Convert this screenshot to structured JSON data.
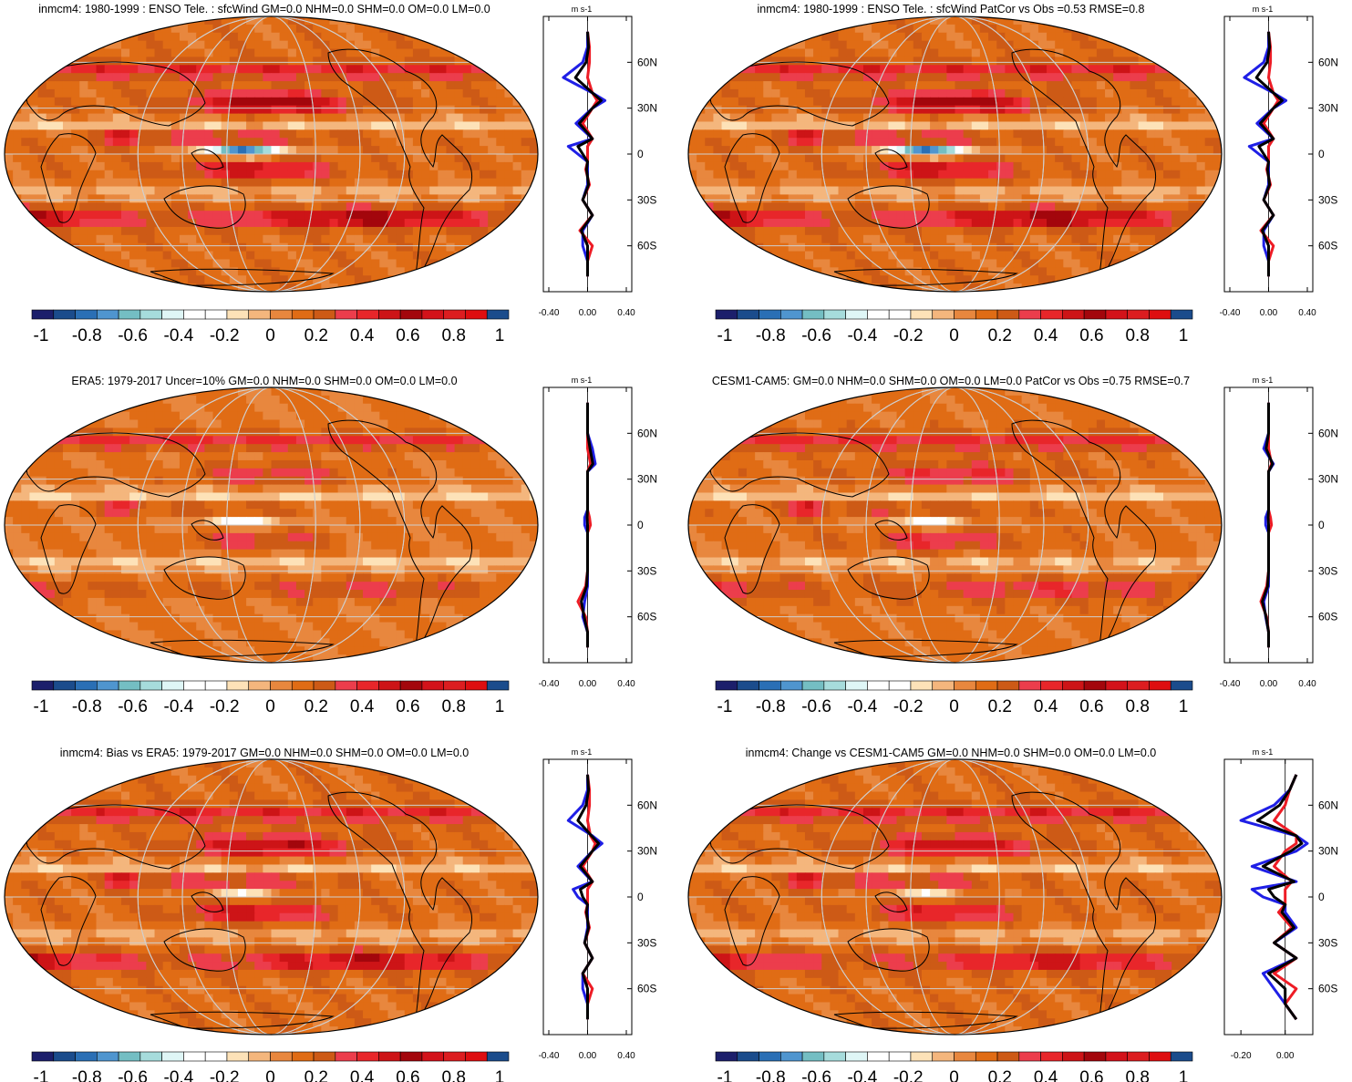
{
  "colorbar": {
    "colors": [
      "#1c1f6b",
      "#1b4c8c",
      "#2a6fb5",
      "#4f95cf",
      "#74bec3",
      "#a6dcdc",
      "#dff6f6",
      "#ffffff",
      "#ffffff",
      "#fde2b8",
      "#f4b67d",
      "#e8873e",
      "#e06c15",
      "#cd5a16",
      "#ec3d4c",
      "#e8262a",
      "#cd1417",
      "#a3060c",
      "#d3121a",
      "#dc1d20",
      "#de0e10",
      "#1b4c8c"
    ],
    "labels": [
      "-1",
      "-0.8",
      "-0.6",
      "-0.4",
      "-0.2",
      "0",
      "0.2",
      "0.4",
      "0.6",
      "0.8",
      "1"
    ]
  },
  "profile_colors": {
    "model": "#1f1fe6",
    "obs": "#ee1c25",
    "mean": "#000000"
  },
  "panels": [
    {
      "title": "inmcm4: 1980-1999 : ENSO Tele. : sfcWind GM=0.0 NHM=0.0 SHM=0.0 OM=0.0 LM=0.0",
      "unit": "m s-1",
      "lat_labels": [
        "60N",
        "30N",
        "0",
        "30S",
        "60S"
      ],
      "x_labels": [
        "-0.40",
        "0.00",
        "0.40"
      ]
    },
    {
      "title": "inmcm4: 1980-1999 : ENSO Tele. : sfcWind PatCor vs Obs =0.53 RMSE=0.8",
      "unit": "m s-1",
      "lat_labels": [
        "60N",
        "30N",
        "0",
        "30S",
        "60S"
      ],
      "x_labels": [
        "-0.40",
        "0.00",
        "0.40"
      ]
    },
    {
      "title": "ERA5: 1979-2017 Uncer=10% GM=0.0 NHM=0.0 SHM=0.0 OM=0.0 LM=0.0",
      "unit": "m s-1",
      "lat_labels": [
        "60N",
        "30N",
        "0",
        "30S",
        "60S"
      ],
      "x_labels": [
        "-0.40",
        "0.00",
        "0.40"
      ]
    },
    {
      "title": "CESM1-CAM5: GM=0.0 NHM=0.0 SHM=0.0 OM=0.0 LM=0.0 PatCor vs Obs =0.75 RMSE=0.7",
      "unit": "m s-1",
      "lat_labels": [
        "60N",
        "30N",
        "0",
        "30S",
        "60S"
      ],
      "x_labels": [
        "-0.40",
        "0.00",
        "0.40"
      ]
    },
    {
      "title": "inmcm4: Bias vs ERA5: 1979-2017 GM=0.0 NHM=0.0 SHM=0.0 OM=0.0 LM=0.0",
      "unit": "m s-1",
      "lat_labels": [
        "60N",
        "30N",
        "0",
        "30S",
        "60S"
      ],
      "x_labels": [
        "-0.40",
        "0.00",
        "0.40"
      ]
    },
    {
      "title": "inmcm4: Change vs CESM1-CAM5 GM=0.0 NHM=0.0 SHM=0.0 OM=0.0 LM=0.0",
      "unit": "m s-1",
      "lat_labels": [
        "60N",
        "30N",
        "0",
        "30S",
        "60S"
      ],
      "x_labels": [
        "-0.20",
        "0.00"
      ]
    }
  ],
  "chart_data": [
    {
      "type": "heatmap",
      "title": "inmcm4: 1980-1999 : ENSO Tele. : sfcWind GM=0.0 NHM=0.0 SHM=0.0 OM=0.0 LM=0.0",
      "colorbar": {
        "min": -1,
        "max": 1,
        "ticks": [
          "-1",
          "-0.8",
          "-0.6",
          "-0.4",
          "-0.2",
          "0",
          "0.2",
          "0.4",
          "0.6",
          "0.8",
          "1"
        ]
      },
      "zonal_profile": {
        "unit": "m s-1",
        "xlim": [
          -0.4,
          0.4
        ],
        "lat": [
          80,
          70,
          60,
          50,
          40,
          35,
          30,
          20,
          10,
          5,
          0,
          -5,
          -10,
          -20,
          -30,
          -40,
          -50,
          -60,
          -70,
          -80
        ],
        "model": [
          0.0,
          0.0,
          -0.05,
          -0.25,
          0.05,
          0.18,
          0.05,
          -0.12,
          0.05,
          -0.2,
          -0.1,
          0.0,
          0.0,
          0.0,
          -0.05,
          0.05,
          -0.05,
          -0.05,
          0.0,
          0.0
        ],
        "obs": [
          0.0,
          0.02,
          0.02,
          0.0,
          0.05,
          0.1,
          0.05,
          -0.05,
          0.05,
          0.0,
          0.0,
          0.0,
          -0.02,
          0.02,
          -0.05,
          0.05,
          -0.08,
          0.05,
          0.0,
          0.0
        ]
      }
    },
    {
      "type": "heatmap",
      "title": "inmcm4: 1980-1999 : ENSO Tele. : sfcWind PatCor vs Obs =0.53 RMSE=0.8",
      "colorbar": {
        "min": -1,
        "max": 1,
        "ticks": [
          "-1",
          "-0.8",
          "-0.6",
          "-0.4",
          "-0.2",
          "0",
          "0.2",
          "0.4",
          "0.6",
          "0.8",
          "1"
        ]
      },
      "zonal_profile": {
        "unit": "m s-1",
        "xlim": [
          -0.4,
          0.4
        ],
        "lat": [
          80,
          70,
          60,
          50,
          40,
          35,
          30,
          20,
          10,
          5,
          0,
          -5,
          -10,
          -20,
          -30,
          -40,
          -50,
          -60,
          -70,
          -80
        ],
        "model": [
          0.0,
          0.0,
          -0.05,
          -0.25,
          0.05,
          0.18,
          0.05,
          -0.12,
          0.05,
          -0.2,
          -0.1,
          0.0,
          0.0,
          0.0,
          -0.05,
          0.05,
          -0.05,
          -0.05,
          0.0,
          0.0
        ],
        "obs": [
          0.0,
          0.02,
          0.02,
          0.0,
          0.05,
          0.1,
          0.05,
          -0.05,
          0.05,
          0.0,
          0.0,
          0.0,
          -0.02,
          0.02,
          -0.05,
          0.05,
          -0.08,
          0.05,
          0.0,
          0.0
        ]
      }
    },
    {
      "type": "heatmap",
      "title": "ERA5: 1979-2017 Uncer=10% GM=0.0 NHM=0.0 SHM=0.0 OM=0.0 LM=0.0",
      "colorbar": {
        "min": -1,
        "max": 1,
        "ticks": [
          "-1",
          "-0.8",
          "-0.6",
          "-0.4",
          "-0.2",
          "0",
          "0.2",
          "0.4",
          "0.6",
          "0.8",
          "1"
        ]
      },
      "zonal_profile": {
        "unit": "m s-1",
        "xlim": [
          -0.4,
          0.4
        ],
        "lat": [
          80,
          70,
          60,
          50,
          40,
          35,
          30,
          20,
          10,
          5,
          0,
          -5,
          -10,
          -20,
          -30,
          -40,
          -50,
          -60,
          -70,
          -80
        ],
        "model": [
          0.0,
          0.0,
          0.0,
          0.05,
          0.08,
          0.0,
          0.0,
          0.0,
          0.0,
          -0.03,
          -0.03,
          0.0,
          0.0,
          0.0,
          0.0,
          0.0,
          -0.03,
          -0.05,
          0.0,
          0.0
        ],
        "obs": [
          0.0,
          0.0,
          0.0,
          0.0,
          0.03,
          0.0,
          0.0,
          0.0,
          0.0,
          0.02,
          0.03,
          0.0,
          0.0,
          0.0,
          0.0,
          -0.02,
          -0.1,
          -0.02,
          0.0,
          0.0
        ]
      }
    },
    {
      "type": "heatmap",
      "title": "CESM1-CAM5: GM=0.0 NHM=0.0 SHM=0.0 OM=0.0 LM=0.0 PatCor vs Obs =0.75 RMSE=0.7",
      "colorbar": {
        "min": -1,
        "max": 1,
        "ticks": [
          "-1",
          "-0.8",
          "-0.6",
          "-0.4",
          "-0.2",
          "0",
          "0.2",
          "0.4",
          "0.6",
          "0.8",
          "1"
        ]
      },
      "zonal_profile": {
        "unit": "m s-1",
        "xlim": [
          -0.4,
          0.4
        ],
        "lat": [
          80,
          70,
          60,
          50,
          40,
          35,
          30,
          20,
          10,
          5,
          0,
          -5,
          -10,
          -20,
          -30,
          -40,
          -50,
          -60,
          -70,
          -80
        ],
        "model": [
          0.0,
          0.0,
          0.0,
          -0.05,
          0.05,
          0.0,
          0.0,
          0.0,
          0.0,
          -0.03,
          -0.03,
          0.0,
          0.0,
          0.0,
          0.0,
          0.0,
          -0.05,
          -0.03,
          0.0,
          0.0
        ],
        "obs": [
          0.0,
          0.0,
          0.0,
          0.0,
          0.03,
          0.0,
          0.0,
          0.0,
          0.0,
          0.02,
          0.03,
          0.0,
          0.0,
          0.0,
          0.0,
          -0.02,
          -0.08,
          -0.02,
          0.0,
          0.0
        ]
      }
    },
    {
      "type": "heatmap",
      "title": "inmcm4: Bias vs ERA5: 1979-2017 GM=0.0 NHM=0.0 SHM=0.0 OM=0.0 LM=0.0",
      "colorbar": {
        "min": -1,
        "max": 1,
        "ticks": [
          "-1",
          "-0.8",
          "-0.6",
          "-0.4",
          "-0.2",
          "0",
          "0.2",
          "0.4",
          "0.6",
          "0.8",
          "1"
        ]
      },
      "zonal_profile": {
        "unit": "m s-1",
        "xlim": [
          -0.4,
          0.4
        ],
        "lat": [
          80,
          70,
          60,
          50,
          40,
          35,
          30,
          20,
          10,
          5,
          0,
          -5,
          -10,
          -20,
          -30,
          -40,
          -50,
          -60,
          -70,
          -80
        ],
        "model": [
          0.0,
          0.0,
          -0.05,
          -0.2,
          0.05,
          0.15,
          0.05,
          -0.1,
          0.05,
          -0.15,
          -0.1,
          0.0,
          0.0,
          0.0,
          -0.03,
          0.05,
          -0.05,
          -0.05,
          0.0,
          0.0
        ],
        "obs": [
          0.0,
          0.02,
          0.02,
          0.0,
          0.03,
          0.08,
          0.05,
          -0.05,
          0.05,
          0.0,
          0.0,
          0.0,
          -0.02,
          0.02,
          -0.03,
          0.05,
          -0.05,
          0.05,
          0.0,
          0.0
        ]
      }
    },
    {
      "type": "heatmap",
      "title": "inmcm4: Change vs CESM1-CAM5 GM=0.0 NHM=0.0 SHM=0.0 OM=0.0 LM=0.0",
      "colorbar": {
        "min": -1,
        "max": 1,
        "ticks": [
          "-1",
          "-0.8",
          "-0.6",
          "-0.4",
          "-0.2",
          "0",
          "0.2",
          "0.4",
          "0.6",
          "0.8",
          "1"
        ]
      },
      "zonal_profile": {
        "unit": "m s-1",
        "xlim": [
          -0.25,
          0.1
        ],
        "lat": [
          80,
          70,
          60,
          50,
          40,
          35,
          30,
          20,
          10,
          5,
          0,
          -5,
          -10,
          -20,
          -30,
          -40,
          -50,
          -60,
          -70,
          -80
        ],
        "model": [
          0.05,
          0.02,
          -0.05,
          -0.2,
          0.05,
          0.1,
          0.05,
          -0.15,
          0.05,
          -0.15,
          -0.1,
          0.0,
          0.0,
          0.05,
          -0.05,
          0.05,
          -0.1,
          -0.05,
          0.0,
          0.05
        ],
        "obs": [
          0.05,
          0.02,
          0.0,
          -0.05,
          0.05,
          0.05,
          0.0,
          -0.05,
          0.03,
          0.0,
          0.0,
          0.0,
          -0.03,
          0.03,
          -0.05,
          0.05,
          -0.05,
          0.05,
          0.0,
          0.05
        ]
      }
    }
  ]
}
